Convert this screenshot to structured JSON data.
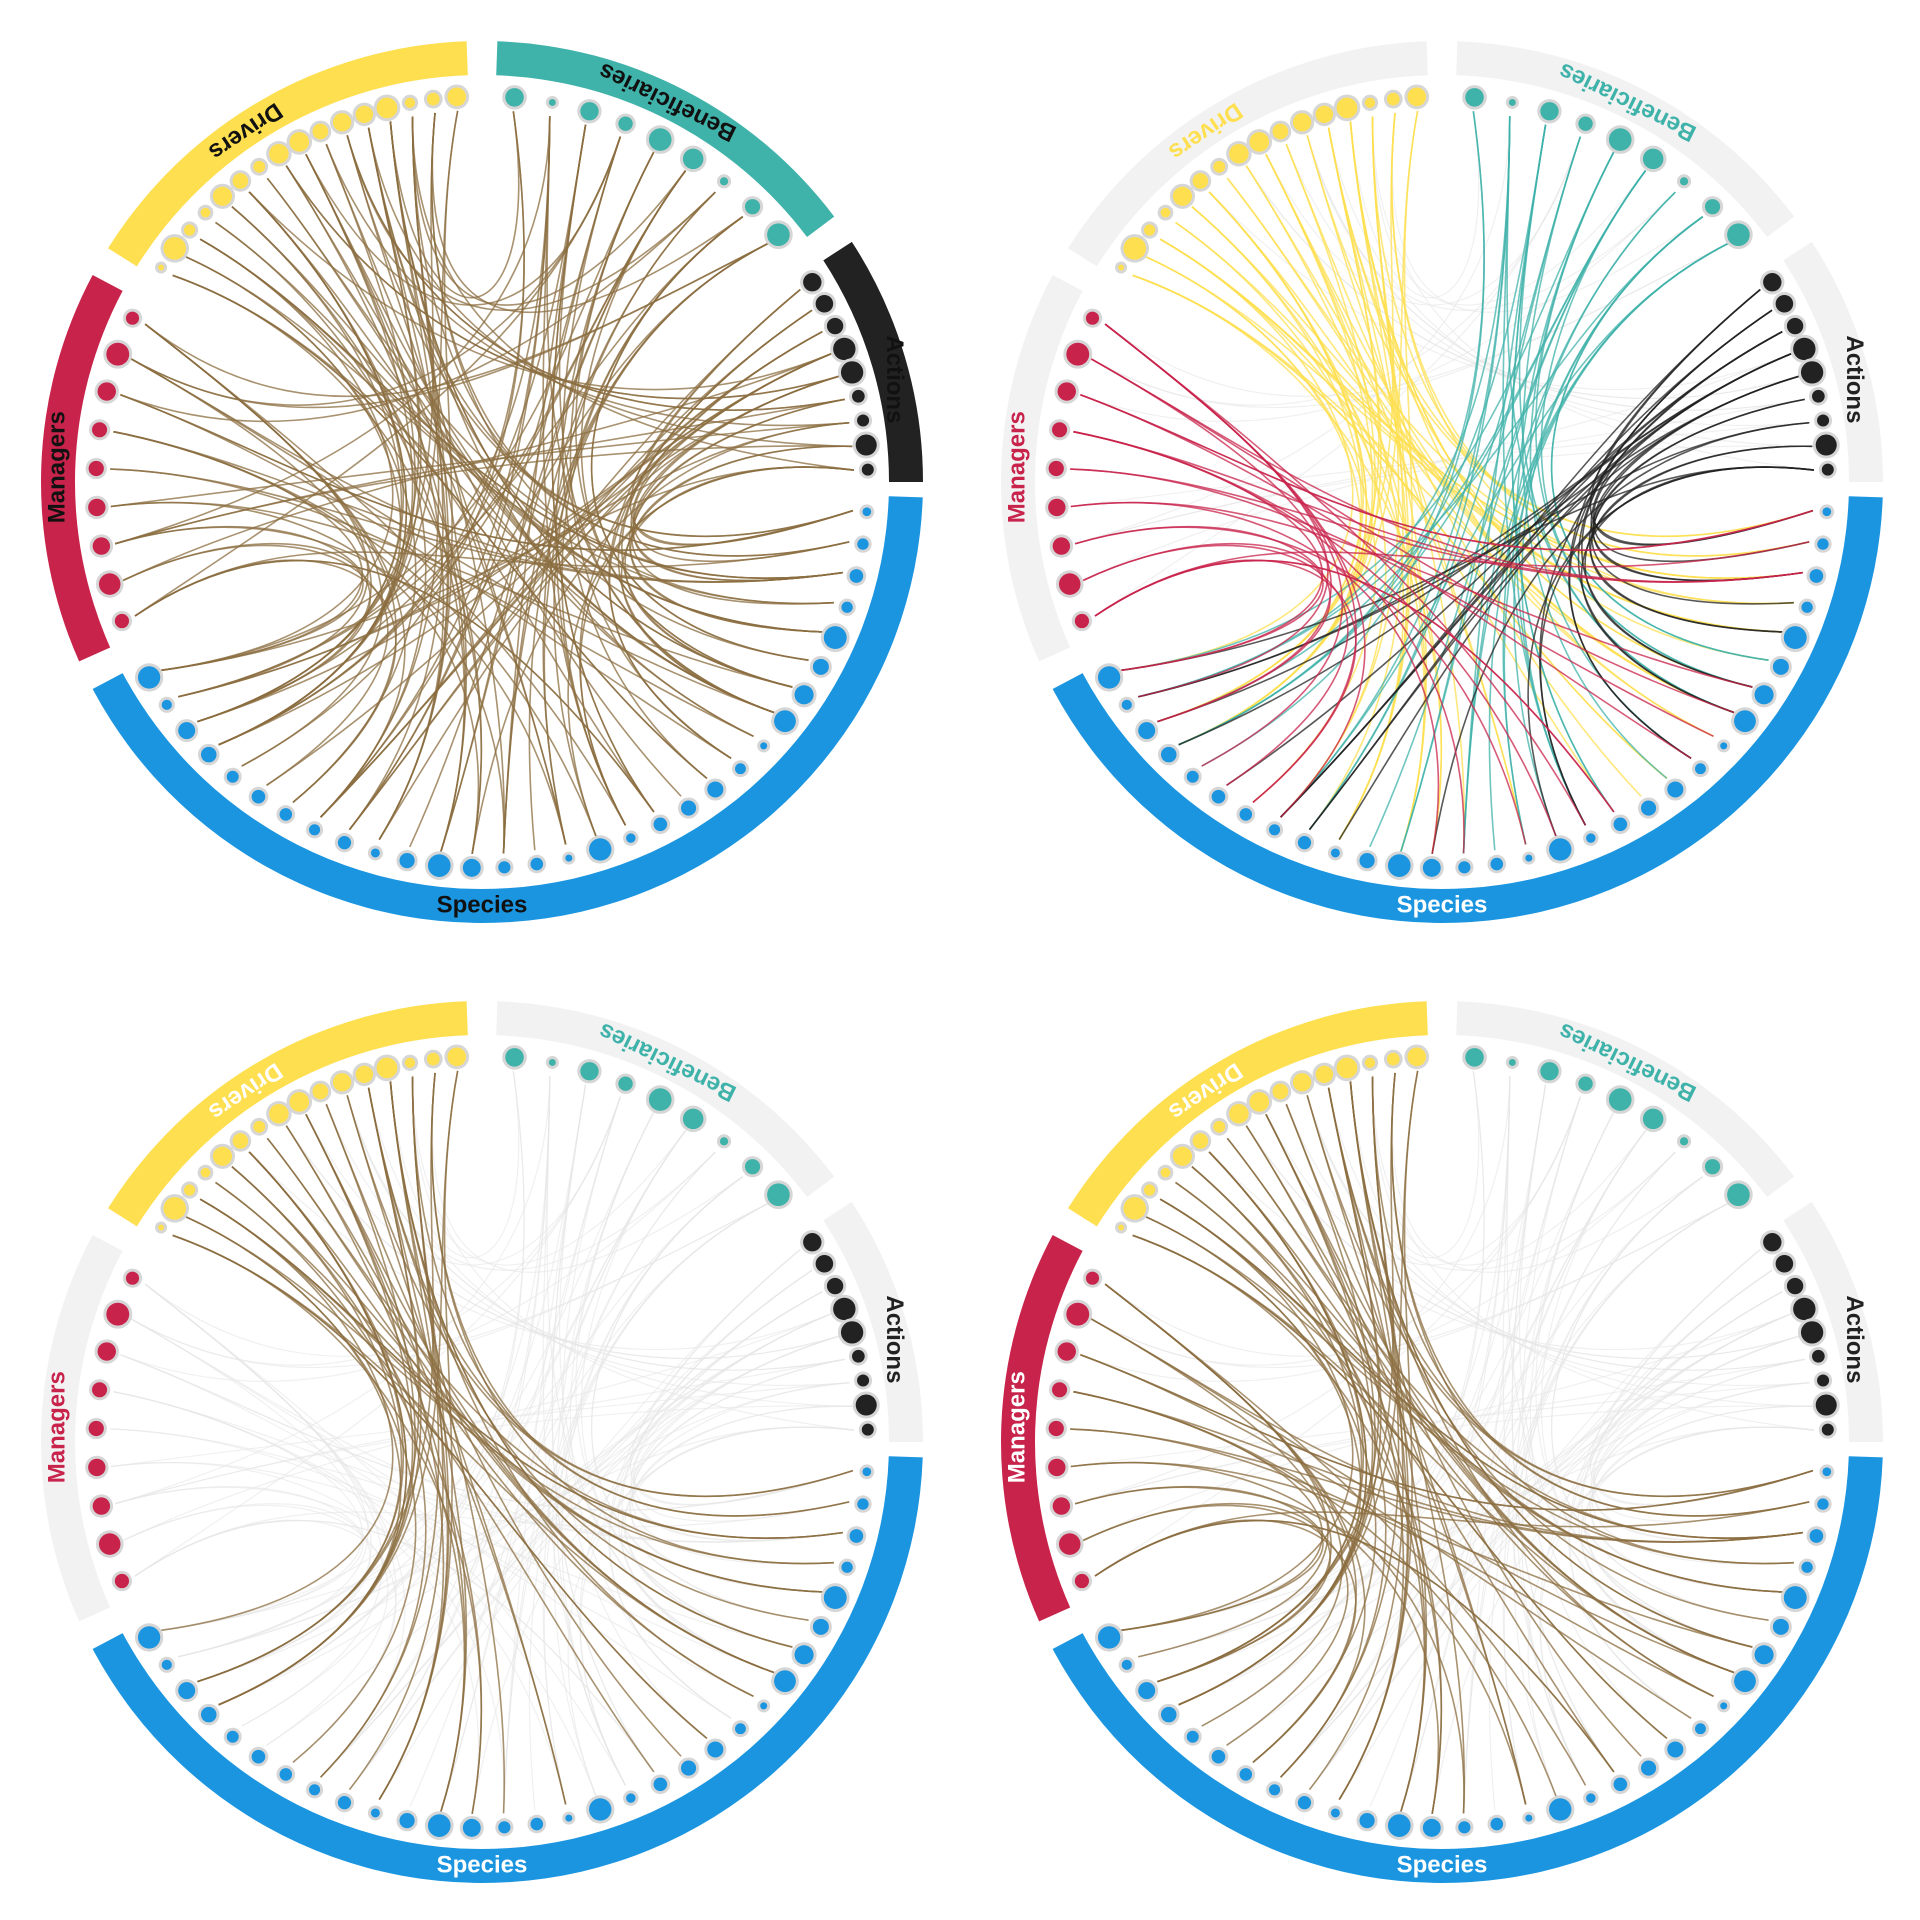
{
  "panels": [
    {
      "edge_color": "#8b6d40",
      "label_color": "#111111",
      "groups": [
        {
          "label": "Drivers",
          "color": "#fddf4f",
          "active": true
        },
        {
          "label": "Beneficiaries",
          "color": "#3fb2a9",
          "active": true
        },
        {
          "label": "Actions",
          "color": "#222222",
          "active": true
        },
        {
          "label": "Species",
          "color": "#1b95e0",
          "active": true
        },
        {
          "label": "Managers",
          "color": "#c8234b",
          "active": true
        }
      ]
    },
    {
      "edge_color": "source",
      "groups": [
        {
          "label": "Drivers",
          "color": "#fddf4f",
          "active": false
        },
        {
          "label": "Beneficiaries",
          "color": "#3fb2a9",
          "active": false
        },
        {
          "label": "Actions",
          "color": "#222222",
          "active": false
        },
        {
          "label": "Species",
          "color": "#1b95e0",
          "active": true
        },
        {
          "label": "Managers",
          "color": "#c8234b",
          "active": false
        }
      ]
    },
    {
      "edge_color": "#8b6d40",
      "groups": [
        {
          "label": "Drivers",
          "color": "#fddf4f",
          "active": true
        },
        {
          "label": "Beneficiaries",
          "color": "#3fb2a9",
          "active": false
        },
        {
          "label": "Actions",
          "color": "#222222",
          "active": false
        },
        {
          "label": "Species",
          "color": "#1b95e0",
          "active": true
        },
        {
          "label": "Managers",
          "color": "#c8234b",
          "active": false
        }
      ]
    },
    {
      "edge_color": "#8b6d40",
      "groups": [
        {
          "label": "Drivers",
          "color": "#fddf4f",
          "active": true
        },
        {
          "label": "Beneficiaries",
          "color": "#3fb2a9",
          "active": false
        },
        {
          "label": "Actions",
          "color": "#222222",
          "active": false
        },
        {
          "label": "Species",
          "color": "#1b95e0",
          "active": true
        },
        {
          "label": "Managers",
          "color": "#c8234b",
          "active": true
        }
      ]
    }
  ]
}
